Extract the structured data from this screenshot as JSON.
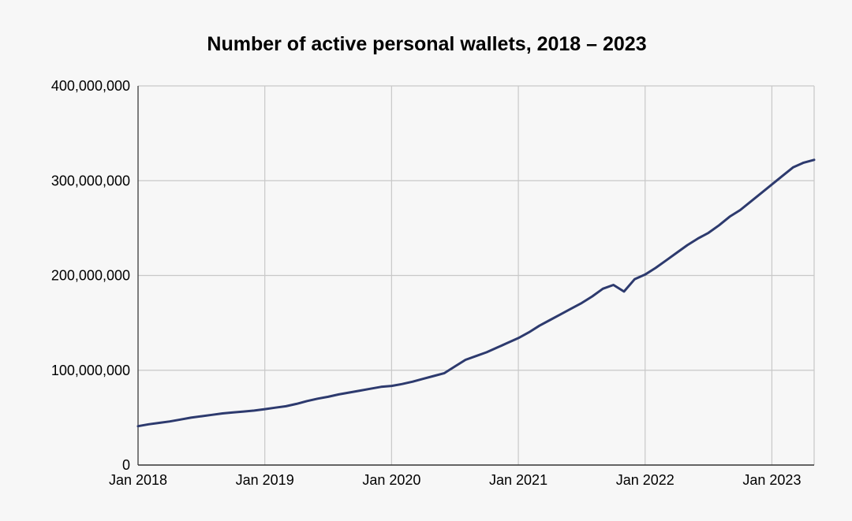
{
  "chart_data": {
    "type": "line",
    "title": "Number of active personal wallets, 2018 – 2023",
    "xlabel": "",
    "ylabel": "",
    "ylim": [
      0,
      400000000
    ],
    "xlim": [
      "2018-01",
      "2023-05"
    ],
    "grid": true,
    "legend": "none",
    "line_color": "#2d3a6e",
    "y_ticks": [
      {
        "value": 0,
        "label": "0"
      },
      {
        "value": 100000000,
        "label": "100,000,000"
      },
      {
        "value": 200000000,
        "label": "200,000,000"
      },
      {
        "value": 300000000,
        "label": "300,000,000"
      },
      {
        "value": 400000000,
        "label": "400,000,000"
      }
    ],
    "x_ticks": [
      {
        "value": "2018-01",
        "label": "Jan 2018"
      },
      {
        "value": "2019-01",
        "label": "Jan 2019"
      },
      {
        "value": "2020-01",
        "label": "Jan 2020"
      },
      {
        "value": "2021-01",
        "label": "Jan 2021"
      },
      {
        "value": "2022-01",
        "label": "Jan 2022"
      },
      {
        "value": "2023-01",
        "label": "Jan 2023"
      }
    ],
    "series": [
      {
        "x": [
          "2018-01",
          "2018-02",
          "2018-03",
          "2018-04",
          "2018-05",
          "2018-06",
          "2018-07",
          "2018-08",
          "2018-09",
          "2018-10",
          "2018-11",
          "2018-12",
          "2019-01",
          "2019-02",
          "2019-03",
          "2019-04",
          "2019-05",
          "2019-06",
          "2019-07",
          "2019-08",
          "2019-09",
          "2019-10",
          "2019-11",
          "2019-12",
          "2020-01",
          "2020-02",
          "2020-03",
          "2020-04",
          "2020-05",
          "2020-06",
          "2020-07",
          "2020-08",
          "2020-09",
          "2020-10",
          "2020-11",
          "2020-12",
          "2021-01",
          "2021-02",
          "2021-03",
          "2021-04",
          "2021-05",
          "2021-06",
          "2021-07",
          "2021-08",
          "2021-09",
          "2021-10",
          "2021-11",
          "2021-12",
          "2022-01",
          "2022-02",
          "2022-03",
          "2022-04",
          "2022-05",
          "2022-06",
          "2022-07",
          "2022-08",
          "2022-09",
          "2022-10",
          "2022-11",
          "2022-12",
          "2023-01",
          "2023-02",
          "2023-03",
          "2023-04",
          "2023-05"
        ],
        "values": [
          41000000,
          43000000,
          44500000,
          46000000,
          48000000,
          50000000,
          51500000,
          53000000,
          54500000,
          55500000,
          56500000,
          57500000,
          59000000,
          60500000,
          62000000,
          64500000,
          67500000,
          70000000,
          72000000,
          74500000,
          76500000,
          78500000,
          80500000,
          82500000,
          83500000,
          85500000,
          88000000,
          91000000,
          94000000,
          97000000,
          104000000,
          111000000,
          115000000,
          119000000,
          124000000,
          129000000,
          134000000,
          140000000,
          147000000,
          153000000,
          159000000,
          165000000,
          171000000,
          178000000,
          186000000,
          190000000,
          183000000,
          196000000,
          201000000,
          208000000,
          216000000,
          224000000,
          232000000,
          239000000,
          245000000,
          253000000,
          262000000,
          269000000,
          278000000,
          287000000,
          296000000,
          305000000,
          314000000,
          319000000,
          322000000
        ]
      }
    ]
  }
}
